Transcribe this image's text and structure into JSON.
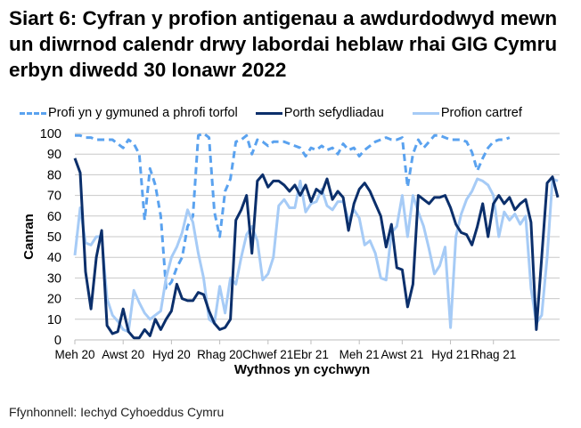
{
  "title": "Siart 6: Cyfran y profion antigenau a awdurdodwyd mewn un diwrnod calendr drwy labordai heblaw rhai GIG Cymru erbyn diwedd 30 Ionawr 2022",
  "source": "Ffynhonnell: Iechyd Cyhoeddus Cymru",
  "chart_data": {
    "type": "line",
    "title": "Siart 6: Cyfran y profion antigenau a awdurdodwyd mewn un diwrnod calendr drwy labordai heblaw rhai GIG Cymru erbyn diwedd 30 Ionawr 2022",
    "xlabel": "Wythnos yn cychwyn",
    "ylabel": "Canran",
    "ylim": [
      0,
      100
    ],
    "yticks": [
      0,
      10,
      20,
      30,
      40,
      50,
      60,
      70,
      80,
      90,
      100
    ],
    "xtick_labels": [
      "Meh 20",
      "Awst 20",
      "Hyd 20",
      "Rhag 20",
      "Chwef 21",
      "Ebr 21",
      "Meh 21",
      "Awst 21",
      "Hyd 21",
      "Rhag 21"
    ],
    "xtick_index": [
      0,
      9,
      18,
      27,
      36,
      44,
      53,
      61,
      70,
      78
    ],
    "grid": true,
    "legend_position": "top",
    "series": [
      {
        "name": "Profi yn y gymuned a phrofi torfol",
        "color": "#5aa2ef",
        "style": "dashed",
        "values": [
          99,
          99,
          98,
          98,
          97,
          97,
          97,
          97,
          95,
          93,
          97,
          95,
          90,
          58,
          83,
          75,
          60,
          25,
          28,
          35,
          40,
          55,
          60,
          99,
          100,
          98,
          62,
          50,
          72,
          78,
          96,
          97,
          99,
          90,
          97,
          96,
          94,
          96,
          96,
          96,
          95,
          94,
          93,
          89,
          93,
          92,
          94,
          92,
          93,
          90,
          95,
          92,
          93,
          89,
          92,
          94,
          96,
          97,
          98,
          97,
          97,
          98,
          74,
          90,
          97,
          93,
          96,
          99,
          99,
          98,
          97,
          97,
          97,
          96,
          91,
          82,
          88,
          93,
          96,
          97,
          97,
          98
        ]
      },
      {
        "name": "Porth sefydliadau",
        "color": "#0b2f6b",
        "style": "solid",
        "values": [
          88,
          81,
          33,
          15,
          40,
          53,
          7,
          3,
          4,
          15,
          4,
          1,
          1,
          5,
          2,
          10,
          5,
          10,
          14,
          27,
          20,
          19,
          19,
          23,
          22,
          14,
          8,
          5,
          6,
          10,
          58,
          63,
          70,
          42,
          77,
          80,
          74,
          77,
          77,
          75,
          72,
          75,
          70,
          75,
          67,
          73,
          71,
          78,
          68,
          72,
          69,
          53,
          66,
          73,
          76,
          72,
          66,
          60,
          45,
          56,
          35,
          34,
          16,
          27,
          70,
          68,
          66,
          69,
          69,
          70,
          64,
          56,
          52,
          51,
          46,
          55,
          66,
          50,
          66,
          70,
          66,
          69,
          63,
          66,
          68,
          57,
          5,
          40,
          76,
          79,
          69
        ]
      },
      {
        "name": "Profion cartref",
        "color": "#a6cbf6",
        "style": "solid",
        "values": [
          41,
          64,
          47,
          46,
          50,
          50,
          20,
          12,
          9,
          5,
          4,
          24,
          18,
          13,
          10,
          12,
          14,
          30,
          40,
          45,
          52,
          63,
          57,
          42,
          30,
          10,
          8,
          26,
          13,
          30,
          27,
          40,
          51,
          55,
          48,
          29,
          32,
          40,
          65,
          68,
          64,
          64,
          77,
          62,
          66,
          67,
          73,
          65,
          63,
          67,
          67,
          58,
          63,
          59,
          46,
          48,
          42,
          30,
          29,
          52,
          55,
          70,
          50,
          70,
          62,
          55,
          44,
          32,
          36,
          45,
          6,
          50,
          61,
          68,
          72,
          78,
          77,
          75,
          70,
          50,
          62,
          58,
          61,
          56,
          60,
          25,
          8,
          12,
          40,
          78,
          77
        ]
      }
    ]
  }
}
